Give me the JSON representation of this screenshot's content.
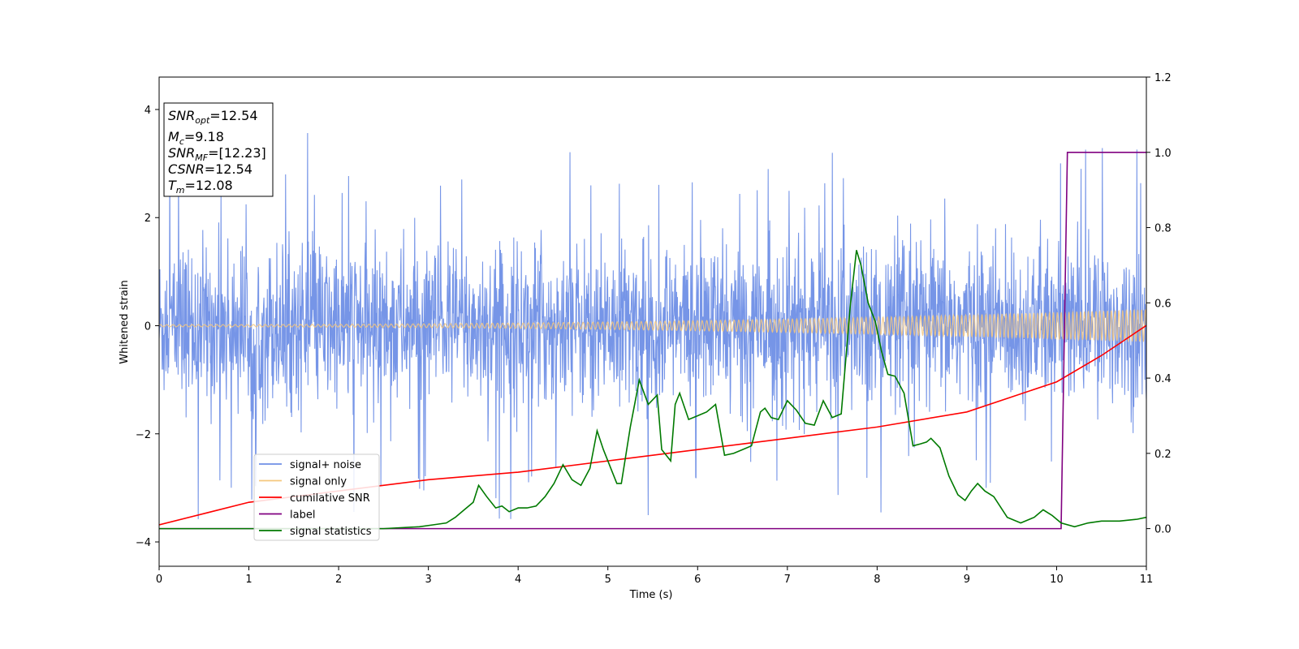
{
  "chart_data": {
    "type": "line",
    "xlabel": "Time (s)",
    "ylabel": "Whitened strain",
    "xlim": [
      0,
      11
    ],
    "ylim_left": [
      -4.45,
      4.6
    ],
    "ylim_right": [
      -0.1,
      1.2
    ],
    "x_ticks": [
      0,
      1,
      2,
      3,
      4,
      5,
      6,
      7,
      8,
      9,
      10,
      11
    ],
    "y_ticks_left": [
      -4,
      -2,
      0,
      2,
      4
    ],
    "y_ticks_right": [
      "0.0",
      "0.2",
      "0.4",
      "0.6",
      "0.8",
      "1.0",
      "1.2"
    ],
    "grid": false,
    "legend_position": "lower-left",
    "legend": [
      {
        "label": "signal+ noise",
        "color": "#6f8fe6"
      },
      {
        "label": "signal only",
        "color": "#f5c77e"
      },
      {
        "label": "cumilative SNR",
        "color": "#ff0000"
      },
      {
        "label": "label",
        "color": "#800080"
      },
      {
        "label": "signal statistics",
        "color": "#007a00"
      }
    ],
    "annotations": {
      "snr_opt": {
        "main": "SNR",
        "sub": "opt",
        "value": "=12.54"
      },
      "mc": {
        "main": "M",
        "sub": "c",
        "value": "=9.18"
      },
      "snr_mf": {
        "main": "SNR",
        "sub": "MF",
        "value": "=[12.23]"
      },
      "csnr": {
        "main": "CSNR",
        "sub": "",
        "value": "=12.54"
      },
      "tm": {
        "main": "T",
        "sub": "m",
        "value": "=12.08"
      }
    },
    "series": [
      {
        "name": "signal+ noise",
        "axis": "left",
        "color": "#6f8fe6",
        "description": "Dense noisy whitened strain, approx within -2.5..2.5 with spikes to about 4.2",
        "approx_envelope": [
          -2.5,
          2.5
        ],
        "max_spike": 4.15,
        "min_spike": -4.05
      },
      {
        "name": "signal only",
        "axis": "left",
        "color": "#f5c77e",
        "description": "Chirp oscillation around 0, amplitude growing from about 0.02 at t=0 to about 0.3 at t=11",
        "amplitude_start": 0.02,
        "amplitude_end": 0.3
      },
      {
        "name": "cumilative SNR",
        "axis": "right",
        "color": "#ff0000",
        "x": [
          0,
          1,
          2,
          3,
          4,
          5,
          6,
          7,
          8,
          9,
          10,
          10.5,
          11
        ],
        "y": [
          0.01,
          0.07,
          0.1,
          0.13,
          0.15,
          0.18,
          0.21,
          0.24,
          0.27,
          0.31,
          0.39,
          0.46,
          0.54
        ]
      },
      {
        "name": "label",
        "axis": "right",
        "color": "#800080",
        "x": [
          0,
          10.05,
          10.12,
          11
        ],
        "y": [
          0.0,
          0.0,
          1.0,
          1.0
        ]
      },
      {
        "name": "signal statistics",
        "axis": "right",
        "color": "#007a00",
        "x": [
          0,
          1,
          2,
          2.5,
          2.9,
          3.05,
          3.2,
          3.3,
          3.4,
          3.5,
          3.56,
          3.65,
          3.75,
          3.82,
          3.9,
          4.0,
          4.1,
          4.2,
          4.3,
          4.4,
          4.5,
          4.6,
          4.7,
          4.8,
          4.88,
          4.95,
          5.05,
          5.1,
          5.15,
          5.25,
          5.35,
          5.45,
          5.55,
          5.6,
          5.7,
          5.75,
          5.8,
          5.9,
          6.0,
          6.1,
          6.2,
          6.3,
          6.4,
          6.5,
          6.6,
          6.7,
          6.75,
          6.82,
          6.9,
          7.0,
          7.1,
          7.2,
          7.3,
          7.4,
          7.5,
          7.6,
          7.7,
          7.77,
          7.82,
          7.9,
          7.98,
          8.05,
          8.12,
          8.2,
          8.3,
          8.4,
          8.48,
          8.55,
          8.6,
          8.7,
          8.8,
          8.9,
          8.98,
          9.05,
          9.12,
          9.2,
          9.3,
          9.45,
          9.6,
          9.75,
          9.85,
          9.95,
          10.05,
          10.2,
          10.35,
          10.5,
          10.7,
          10.9,
          11.0
        ],
        "y": [
          0.0,
          0.0,
          0.0,
          0.0,
          0.005,
          0.01,
          0.015,
          0.03,
          0.05,
          0.07,
          0.115,
          0.085,
          0.055,
          0.06,
          0.045,
          0.055,
          0.055,
          0.06,
          0.085,
          0.12,
          0.17,
          0.13,
          0.115,
          0.16,
          0.26,
          0.21,
          0.15,
          0.12,
          0.12,
          0.27,
          0.395,
          0.33,
          0.355,
          0.21,
          0.18,
          0.33,
          0.36,
          0.29,
          0.3,
          0.31,
          0.33,
          0.195,
          0.2,
          0.21,
          0.22,
          0.31,
          0.32,
          0.295,
          0.29,
          0.34,
          0.315,
          0.28,
          0.275,
          0.34,
          0.295,
          0.305,
          0.59,
          0.74,
          0.7,
          0.6,
          0.55,
          0.47,
          0.41,
          0.405,
          0.36,
          0.22,
          0.225,
          0.23,
          0.24,
          0.215,
          0.14,
          0.09,
          0.075,
          0.1,
          0.12,
          0.1,
          0.085,
          0.03,
          0.015,
          0.03,
          0.05,
          0.035,
          0.015,
          0.005,
          0.015,
          0.02,
          0.02,
          0.025,
          0.03
        ]
      }
    ]
  }
}
